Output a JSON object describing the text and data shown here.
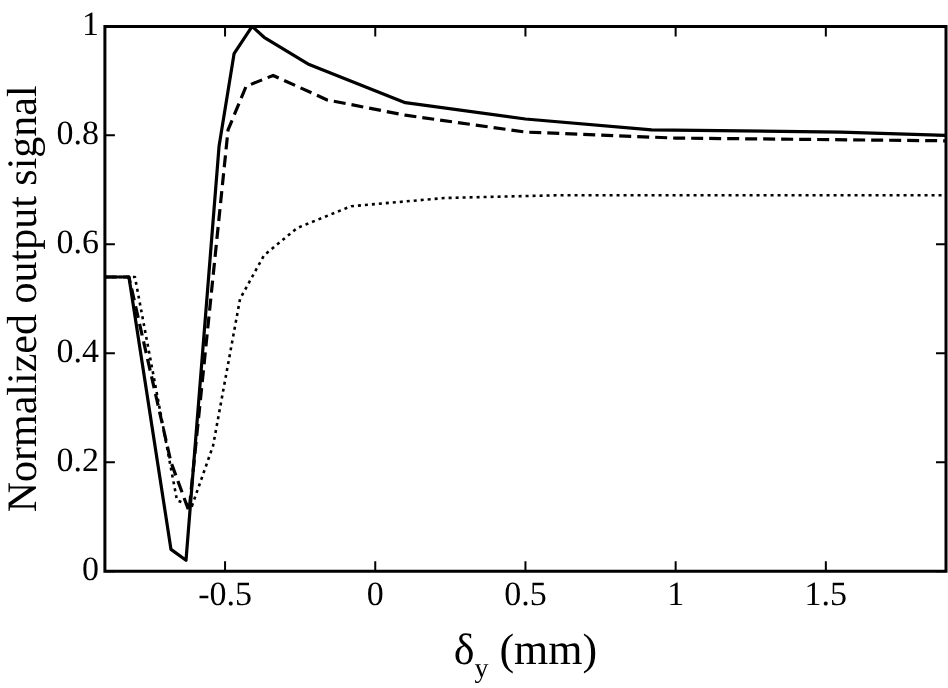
{
  "chart_data": {
    "type": "line",
    "xlabel": "δ$_{y}$ (mm)",
    "ylabel": "Normalized output signal",
    "xlim": [
      -0.9,
      1.9
    ],
    "xticks": [
      -0.5,
      0,
      0.5,
      1,
      1.5
    ],
    "ylim": [
      0,
      1
    ],
    "yticks": [
      0,
      0.2,
      0.4,
      0.6,
      0.8,
      1
    ],
    "grid": false,
    "legend": false,
    "marker": "none",
    "series": [
      {
        "color": "#000000",
        "line_style": "solid",
        "x": [
          -0.9,
          -0.82,
          -0.68,
          -0.63,
          -0.52,
          -0.47,
          -0.41,
          -0.37,
          -0.22,
          0.1,
          0.5,
          0.92,
          1.55,
          1.9
        ],
        "values": [
          0.54,
          0.54,
          0.04,
          0.02,
          0.78,
          0.95,
          1.0,
          0.98,
          0.93,
          0.86,
          0.83,
          0.81,
          0.806,
          0.8
        ]
      },
      {
        "color": "#000000",
        "line_style": "dashed",
        "x": [
          -0.9,
          -0.82,
          -0.68,
          -0.62,
          -0.49,
          -0.43,
          -0.34,
          -0.16,
          0.1,
          0.5,
          1,
          1.9
        ],
        "values": [
          0.54,
          0.54,
          0.2,
          0.11,
          0.81,
          0.89,
          0.91,
          0.865,
          0.837,
          0.806,
          0.795,
          0.79
        ]
      },
      {
        "color": "#000000",
        "line_style": "dotted",
        "x": [
          -0.9,
          -0.8,
          -0.66,
          -0.61,
          -0.54,
          -0.45,
          -0.37,
          -0.26,
          -0.08,
          0.23,
          0.6,
          1.2,
          1.9
        ],
        "values": [
          0.54,
          0.54,
          0.13,
          0.12,
          0.23,
          0.5,
          0.58,
          0.63,
          0.67,
          0.685,
          0.69,
          0.69,
          0.69
        ]
      }
    ]
  }
}
